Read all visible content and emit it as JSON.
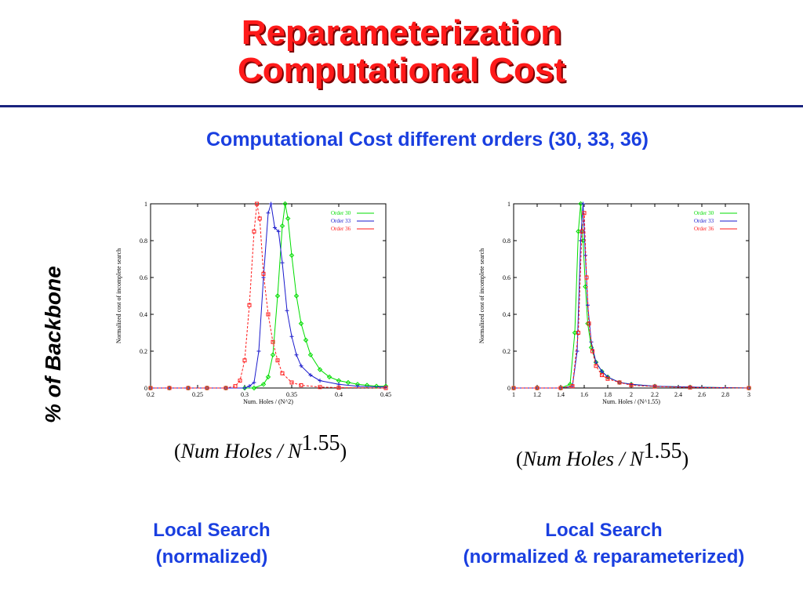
{
  "slide": {
    "title_line1": "Reparameterization",
    "title_line2": "Computational Cost",
    "subtitle": "Computational Cost  different orders (30, 33, 36)",
    "side_label": "% of Backbone",
    "colors": {
      "title": "#ff1a1a",
      "accent": "#1a3fe0",
      "rule": "#1a237e"
    }
  },
  "formulas": [
    {
      "open": "(",
      "text": "Num Holes / N",
      "exp": "1.55",
      "close": ")"
    },
    {
      "open": "(",
      "text": "Num Holes / N",
      "exp": "1.55",
      "close": ")"
    }
  ],
  "captions": [
    {
      "line1": "Local Search",
      "line2": "(normalized)"
    },
    {
      "line1": "Local Search",
      "line2": "(normalized & reparameterized)"
    }
  ],
  "chart_data": [
    {
      "type": "line",
      "xlabel": "Num. Holes / (N^2)",
      "ylabel": "Normalized cost of incomplete search",
      "xlim": [
        0.2,
        0.45
      ],
      "ylim": [
        0,
        1
      ],
      "xticks": [
        "0.2",
        "0.25",
        "0.3",
        "0.35",
        "0.4",
        "0.45"
      ],
      "yticks": [
        "0",
        "0.2",
        "0.4",
        "0.6",
        "0.8",
        "1"
      ],
      "legend_position": "top-right",
      "series": [
        {
          "name": "Order 30",
          "color": "#00dd00",
          "marker": "diamond",
          "x": [
            0.2,
            0.22,
            0.24,
            0.26,
            0.28,
            0.3,
            0.31,
            0.32,
            0.325,
            0.33,
            0.335,
            0.34,
            0.343,
            0.346,
            0.35,
            0.355,
            0.36,
            0.365,
            0.37,
            0.38,
            0.39,
            0.4,
            0.41,
            0.42,
            0.43,
            0.44,
            0.45
          ],
          "y": [
            0,
            0,
            0,
            0,
            0,
            0,
            0,
            0.02,
            0.06,
            0.18,
            0.5,
            0.88,
            1.0,
            0.92,
            0.72,
            0.5,
            0.35,
            0.26,
            0.18,
            0.1,
            0.06,
            0.04,
            0.03,
            0.02,
            0.015,
            0.01,
            0.01
          ]
        },
        {
          "name": "Order 33",
          "color": "#1a1acc",
          "marker": "plus",
          "x": [
            0.2,
            0.22,
            0.24,
            0.26,
            0.28,
            0.3,
            0.305,
            0.31,
            0.315,
            0.32,
            0.325,
            0.328,
            0.332,
            0.336,
            0.34,
            0.345,
            0.35,
            0.355,
            0.36,
            0.37,
            0.38,
            0.4,
            0.42,
            0.45
          ],
          "y": [
            0,
            0,
            0,
            0,
            0,
            0,
            0.01,
            0.03,
            0.2,
            0.6,
            0.95,
            1.0,
            0.87,
            0.85,
            0.68,
            0.42,
            0.28,
            0.18,
            0.12,
            0.07,
            0.04,
            0.02,
            0.01,
            0.005
          ]
        },
        {
          "name": "Order 36",
          "color": "#ff1a1a",
          "marker": "square",
          "x": [
            0.2,
            0.22,
            0.24,
            0.26,
            0.28,
            0.29,
            0.295,
            0.3,
            0.305,
            0.31,
            0.313,
            0.316,
            0.32,
            0.325,
            0.33,
            0.335,
            0.34,
            0.35,
            0.36,
            0.38,
            0.4,
            0.45
          ],
          "y": [
            0,
            0,
            0,
            0,
            0,
            0.01,
            0.04,
            0.15,
            0.45,
            0.85,
            1.0,
            0.92,
            0.62,
            0.4,
            0.25,
            0.15,
            0.08,
            0.03,
            0.015,
            0.005,
            0.002,
            0
          ]
        }
      ]
    },
    {
      "type": "line",
      "xlabel": "Num. Holes / (N^1.55)",
      "ylabel": "Normalized cost of incomplete search",
      "xlim": [
        1,
        3
      ],
      "ylim": [
        0,
        1
      ],
      "xticks": [
        "1",
        "1.2",
        "1.4",
        "1.6",
        "1.8",
        "2",
        "2.2",
        "2.4",
        "2.6",
        "2.8",
        "3"
      ],
      "yticks": [
        "0",
        "0.2",
        "0.4",
        "0.6",
        "0.8",
        "1"
      ],
      "legend_position": "top-right",
      "series": [
        {
          "name": "Order 30",
          "color": "#00dd00",
          "marker": "diamond",
          "x": [
            1.0,
            1.2,
            1.4,
            1.48,
            1.52,
            1.55,
            1.57,
            1.59,
            1.61,
            1.63,
            1.66,
            1.7,
            1.75,
            1.8,
            1.9,
            2.0,
            2.2,
            2.5,
            3.0
          ],
          "y": [
            0,
            0,
            0,
            0.02,
            0.3,
            0.85,
            1.0,
            0.8,
            0.55,
            0.35,
            0.22,
            0.14,
            0.09,
            0.06,
            0.03,
            0.02,
            0.01,
            0.005,
            0
          ]
        },
        {
          "name": "Order 33",
          "color": "#1a1acc",
          "marker": "plus",
          "x": [
            1.0,
            1.2,
            1.4,
            1.5,
            1.54,
            1.57,
            1.59,
            1.61,
            1.63,
            1.66,
            1.7,
            1.75,
            1.8,
            1.9,
            2.0,
            2.2,
            2.5,
            3.0
          ],
          "y": [
            0,
            0,
            0,
            0.01,
            0.2,
            0.8,
            1.0,
            0.72,
            0.45,
            0.25,
            0.14,
            0.09,
            0.06,
            0.03,
            0.02,
            0.01,
            0.005,
            0
          ]
        },
        {
          "name": "Order 36",
          "color": "#ff1a1a",
          "marker": "square",
          "x": [
            1.0,
            1.2,
            1.4,
            1.5,
            1.55,
            1.58,
            1.6,
            1.62,
            1.64,
            1.67,
            1.7,
            1.75,
            1.8,
            1.9,
            2.0,
            2.2,
            2.5,
            3.0
          ],
          "y": [
            0,
            0,
            0,
            0.01,
            0.3,
            0.85,
            0.95,
            0.6,
            0.35,
            0.2,
            0.12,
            0.07,
            0.05,
            0.03,
            0.015,
            0.008,
            0.003,
            0
          ]
        }
      ]
    }
  ]
}
